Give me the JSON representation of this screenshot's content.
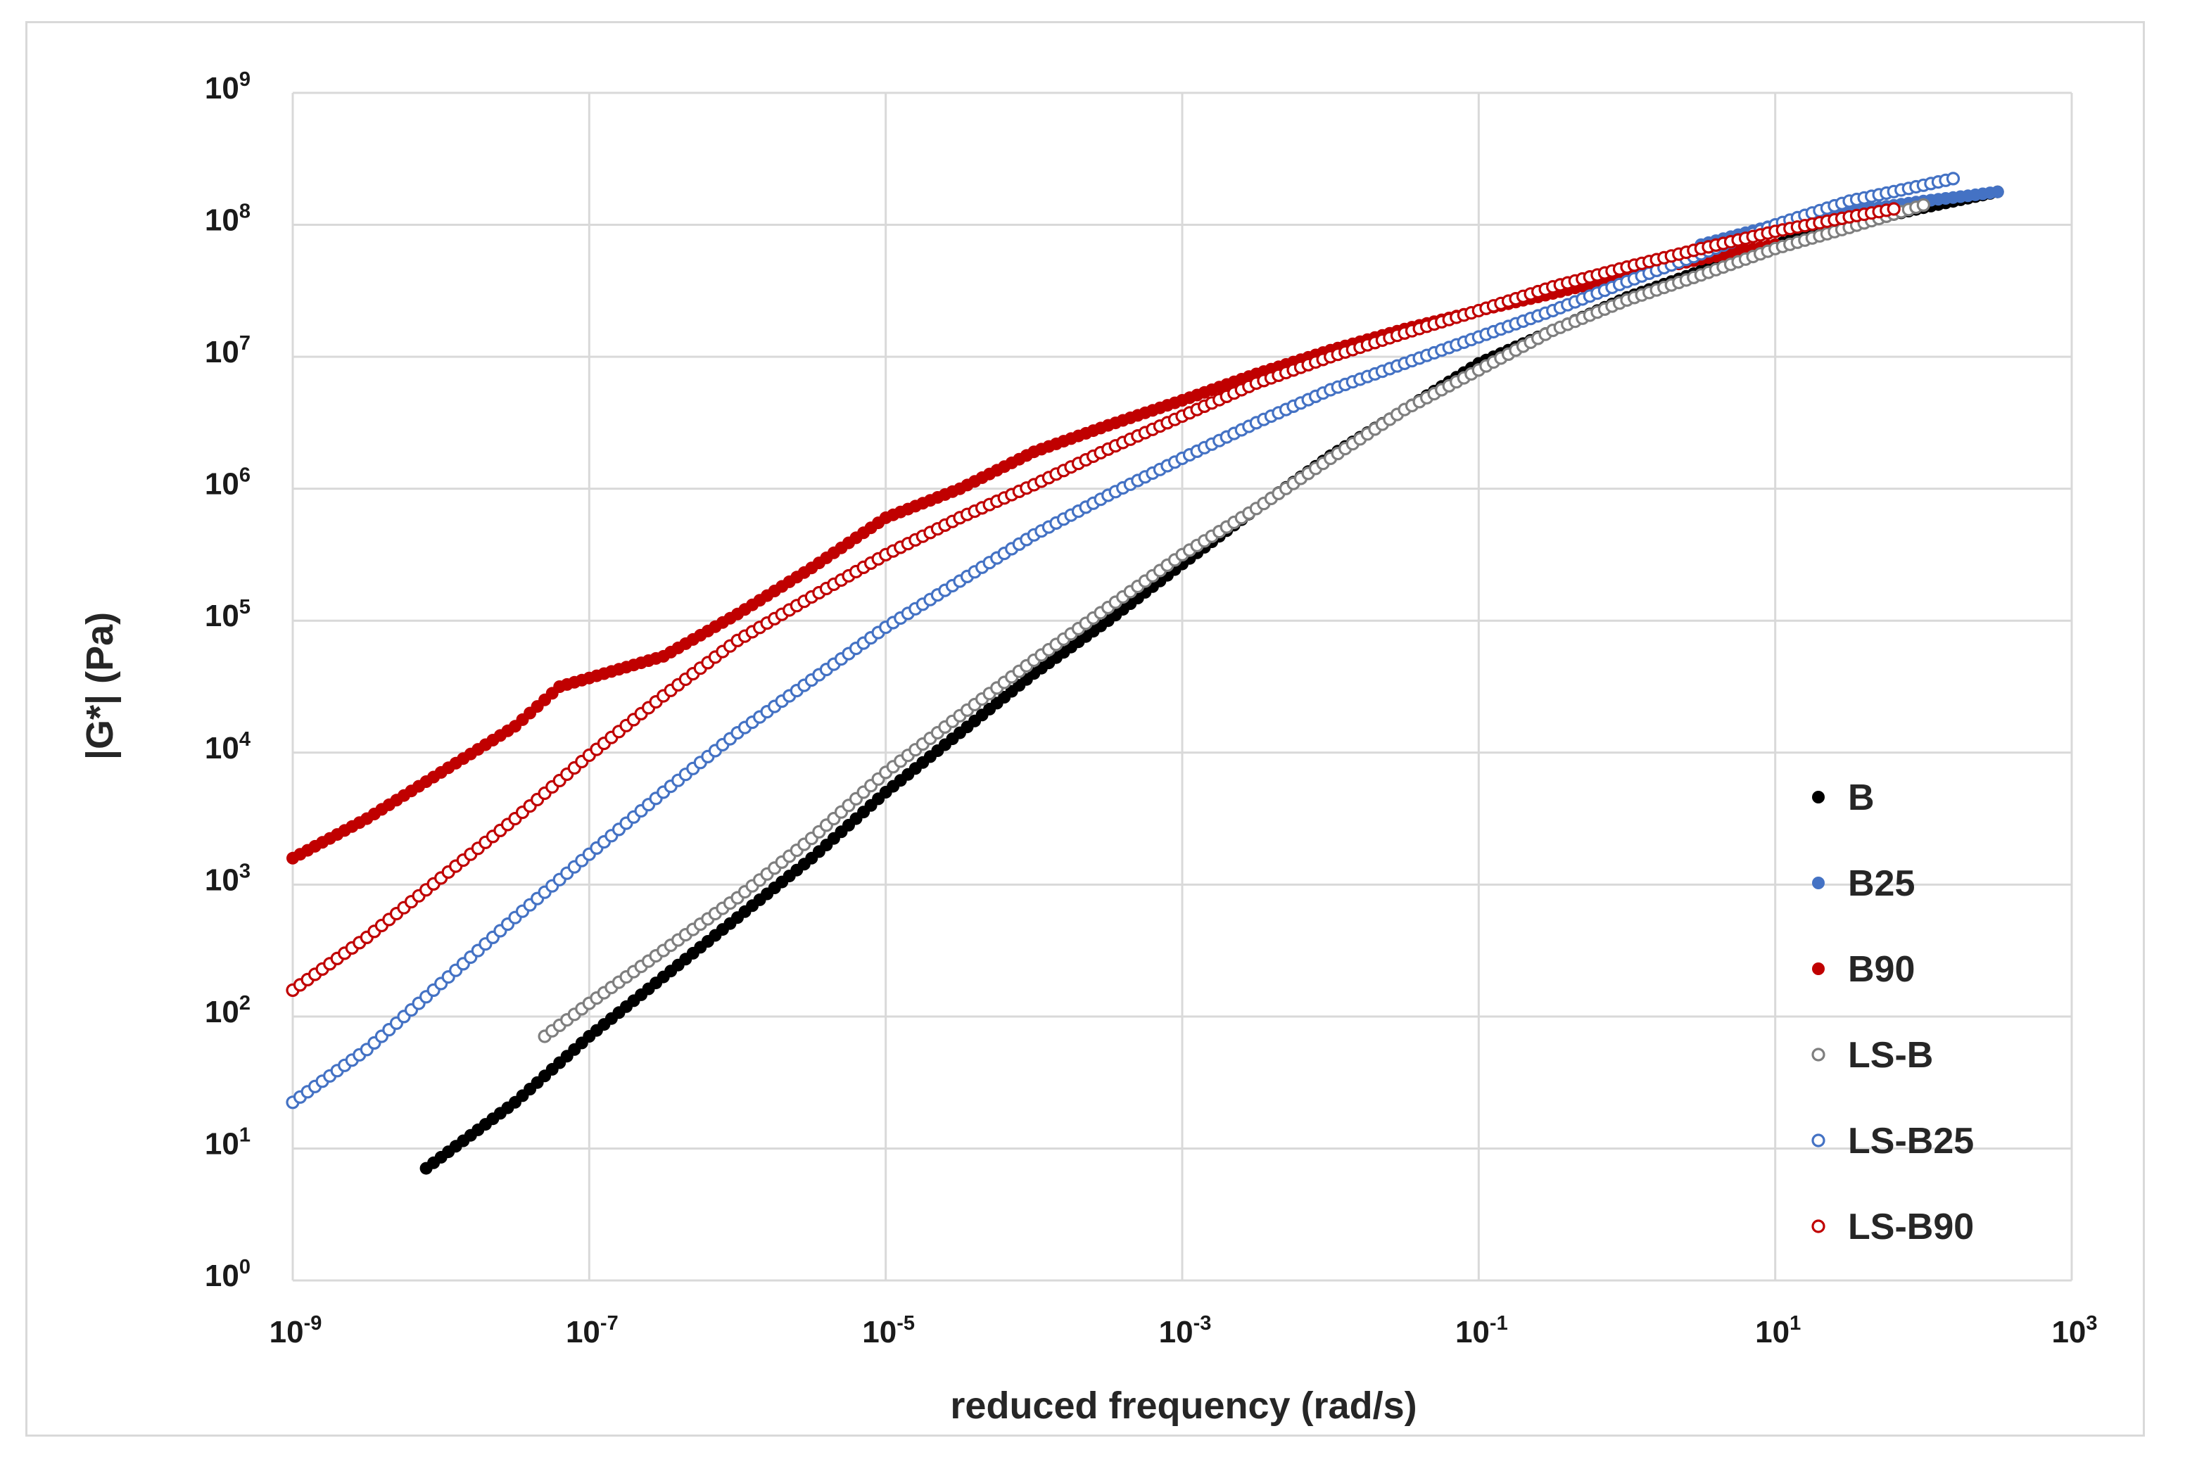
{
  "chart_data": {
    "type": "scatter",
    "title": "",
    "xlabel": "reduced frequency (rad/s)",
    "ylabel": "|G*| (Pa)",
    "xscale": "log",
    "yscale": "log",
    "xlim": [
      1e-09,
      1000
    ],
    "ylim": [
      1,
      1000000000
    ],
    "grid": true,
    "legend_position": "bottom-right",
    "x_ticks": [
      {
        "base": "10",
        "exp": "-9"
      },
      {
        "base": "10",
        "exp": "-7"
      },
      {
        "base": "10",
        "exp": "-5"
      },
      {
        "base": "10",
        "exp": "-3"
      },
      {
        "base": "10",
        "exp": "-1"
      },
      {
        "base": "10",
        "exp": "1"
      },
      {
        "base": "10",
        "exp": "3"
      }
    ],
    "y_ticks": [
      {
        "base": "10",
        "exp": "0"
      },
      {
        "base": "10",
        "exp": "1"
      },
      {
        "base": "10",
        "exp": "2"
      },
      {
        "base": "10",
        "exp": "3"
      },
      {
        "base": "10",
        "exp": "4"
      },
      {
        "base": "10",
        "exp": "5"
      },
      {
        "base": "10",
        "exp": "6"
      },
      {
        "base": "10",
        "exp": "7"
      },
      {
        "base": "10",
        "exp": "8"
      },
      {
        "base": "10",
        "exp": "9"
      }
    ],
    "series": [
      {
        "name": "B",
        "color": "#000000",
        "marker": "filled-circle",
        "x_log10": [
          -8.1,
          -7.5,
          -7,
          -6.5,
          -6,
          -5.5,
          -5,
          -4.5,
          -4,
          -3.5,
          -3,
          -2.5,
          -2,
          -1.5,
          -1,
          -0.5,
          0,
          0.5,
          1,
          1.5,
          2,
          2.5
        ],
        "y_log10": [
          0.85,
          1.35,
          1.85,
          2.3,
          2.75,
          3.2,
          3.7,
          4.15,
          4.6,
          5.0,
          5.43,
          5.85,
          6.25,
          6.6,
          6.95,
          7.2,
          7.45,
          7.65,
          7.85,
          8.0,
          8.13,
          8.25
        ]
      },
      {
        "name": "B25",
        "color": "#4472c4",
        "marker": "filled-circle",
        "x_log10": [
          0.5,
          1.0,
          1.5,
          2.0,
          2.3,
          2.5
        ],
        "y_log10": [
          7.85,
          8.0,
          8.1,
          8.18,
          8.22,
          8.25
        ]
      },
      {
        "name": "B90",
        "color": "#c00000",
        "marker": "filled-circle",
        "x_log10": [
          -9,
          -8.5,
          -8,
          -7.5,
          -7.2,
          -6.5,
          -6,
          -5.5,
          -5,
          -4.5,
          -4,
          -3.5,
          -3,
          -2.5,
          -2,
          -1.5,
          -1,
          -0.5,
          0,
          0.5,
          1
        ],
        "y_log10": [
          3.2,
          3.5,
          3.85,
          4.2,
          4.5,
          4.73,
          5.05,
          5.4,
          5.78,
          6.0,
          6.28,
          6.48,
          6.67,
          6.87,
          7.05,
          7.21,
          7.35,
          7.48,
          7.62,
          7.74,
          7.85
        ]
      },
      {
        "name": "LS-B",
        "color": "#7f7f7f",
        "marker": "open-circle",
        "x_log10": [
          -7.3,
          -7,
          -6.5,
          -6,
          -5.5,
          -5,
          -4.5,
          -4,
          -3.5,
          -3,
          -2.5,
          -2,
          -1.5,
          -1,
          -0.5,
          0,
          0.5,
          1,
          1.5,
          2
        ],
        "y_log10": [
          1.85,
          2.1,
          2.5,
          2.9,
          3.35,
          3.85,
          4.28,
          4.7,
          5.1,
          5.5,
          5.85,
          6.23,
          6.6,
          6.9,
          7.2,
          7.43,
          7.62,
          7.82,
          7.98,
          8.15
        ]
      },
      {
        "name": "LS-B25",
        "color": "#4472c4",
        "marker": "open-circle",
        "x_log10": [
          -9,
          -8.5,
          -8,
          -7.5,
          -7,
          -6.5,
          -6,
          -5.5,
          -5,
          -4.5,
          -4,
          -3.5,
          -3,
          -2.5,
          -2,
          -1.5,
          -1,
          -0.5,
          0,
          0.5,
          1,
          1.5,
          2,
          2.2
        ],
        "y_log10": [
          1.35,
          1.75,
          2.25,
          2.75,
          3.23,
          3.7,
          4.15,
          4.55,
          4.95,
          5.3,
          5.65,
          5.95,
          6.23,
          6.5,
          6.75,
          6.95,
          7.15,
          7.35,
          7.57,
          7.78,
          8.0,
          8.18,
          8.3,
          8.35
        ]
      },
      {
        "name": "LS-B90",
        "color": "#c00000",
        "marker": "open-circle",
        "x_log10": [
          -9,
          -8.5,
          -8,
          -7.5,
          -7,
          -6.5,
          -6,
          -5.5,
          -5,
          -4.5,
          -4,
          -3.5,
          -3,
          -2.5,
          -2,
          -1.5,
          -1,
          -0.5,
          0,
          0.5,
          1,
          1.5,
          1.8
        ],
        "y_log10": [
          2.2,
          2.6,
          3.05,
          3.5,
          3.98,
          4.43,
          4.85,
          5.18,
          5.5,
          5.78,
          6.03,
          6.3,
          6.55,
          6.8,
          7.0,
          7.18,
          7.35,
          7.53,
          7.68,
          7.82,
          7.95,
          8.06,
          8.12
        ]
      }
    ]
  }
}
